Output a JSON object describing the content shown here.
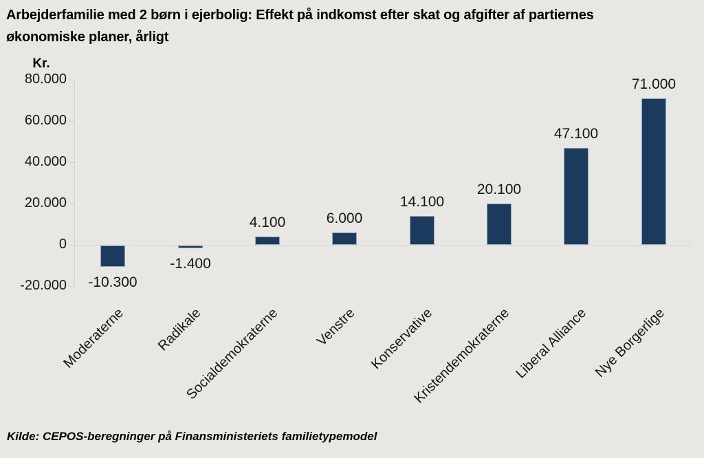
{
  "title_lines": [
    "Arbejderfamilie med 2 børn i ejerbolig: Effekt på indkomst efter skat og afgifter af partiernes",
    "økonomiske planer, årligt"
  ],
  "source": "Kilde: CEPOS-beregninger på Finansministeriets familietypemodel",
  "chart_data": {
    "type": "bar",
    "title": "Arbejderfamilie med 2 børn i ejerbolig: Effekt på indkomst efter skat og afgifter af partiernes økonomiske planer, årligt",
    "ylabel": "Kr.",
    "xlabel": "",
    "categories": [
      "Moderaterne",
      "Radikale",
      "Socialdemokraterne",
      "Venstre",
      "Konservative",
      "Kristendemokraterne",
      "Liberal Alliance",
      "Nye Borgerlige"
    ],
    "values": [
      -10300,
      -1400,
      4100,
      6000,
      14100,
      20100,
      47100,
      71000
    ],
    "value_labels": [
      "-10.300",
      "-1.400",
      "4.100",
      "6.000",
      "14.100",
      "20.100",
      "47.100",
      "71.000"
    ],
    "yticks": [
      {
        "value": 80000,
        "label": "80.000"
      },
      {
        "value": 60000,
        "label": "60.000"
      },
      {
        "value": 40000,
        "label": "40.000"
      },
      {
        "value": 20000,
        "label": "20.000"
      },
      {
        "value": 0,
        "label": "0"
      },
      {
        "value": -20000,
        "label": "-20.000"
      }
    ],
    "ylim": [
      -20000,
      80000
    ],
    "grid": false,
    "legend": null,
    "bar_color": "#1c3a5e",
    "background_color": "#e8e7e4"
  }
}
